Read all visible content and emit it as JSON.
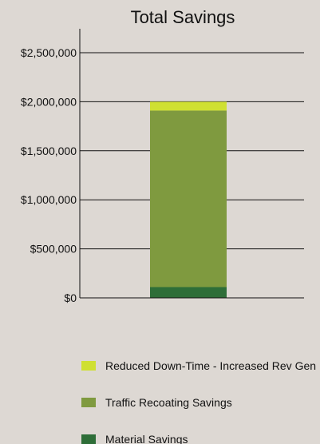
{
  "chart_data": {
    "type": "bar",
    "stacked": true,
    "title": "Total Savings",
    "xlabel": "",
    "ylabel": "",
    "categories": [
      ""
    ],
    "ylim": [
      0,
      2500000
    ],
    "yticks": [
      0,
      500000,
      1000000,
      1500000,
      2000000,
      2500000
    ],
    "ytick_labels": [
      "$0",
      "$500,000",
      "$1,000,000",
      "$1,500,000",
      "$2,000,000",
      "$2,500,000"
    ],
    "grid": true,
    "legend_position": "bottom",
    "series": [
      {
        "name": "Material Savings",
        "values": [
          110000
        ],
        "color": "#2e6e38"
      },
      {
        "name": "Traffic Recoating Savings",
        "values": [
          1800000
        ],
        "color": "#7f9a3f"
      },
      {
        "name": "Reduced Down-Time - Increased Rev Gen",
        "values": [
          90000
        ],
        "color": "#cfe032"
      }
    ],
    "legend_order": [
      "Reduced Down-Time - Increased Rev Gen",
      "Traffic Recoating Savings",
      "Material Savings"
    ]
  }
}
